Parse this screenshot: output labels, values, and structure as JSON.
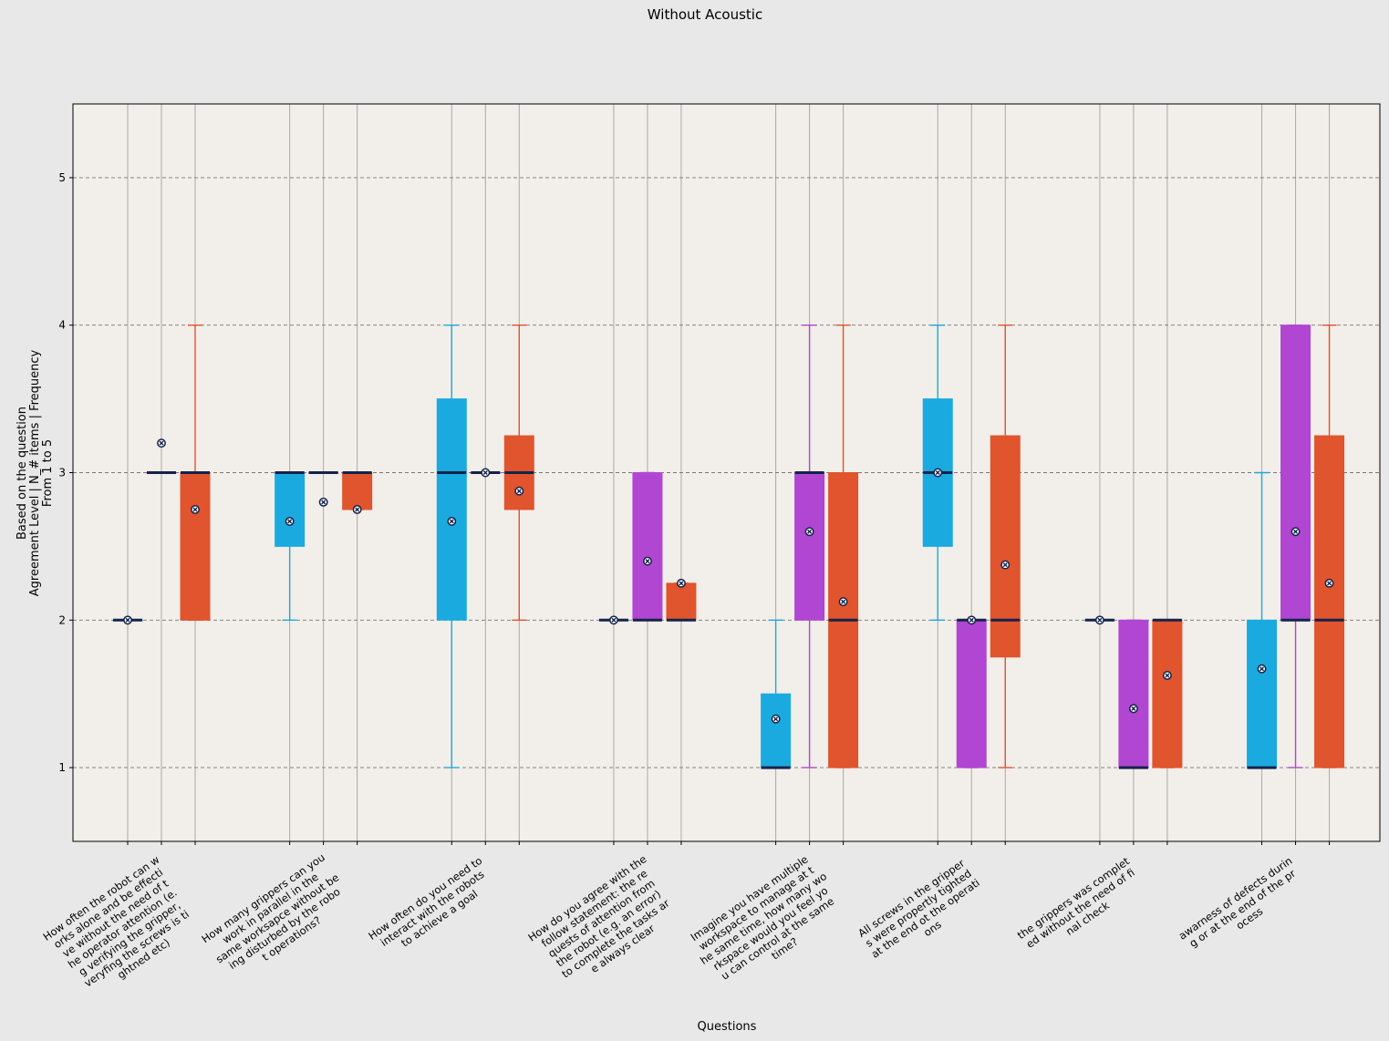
{
  "chart_data": {
    "type": "boxplot",
    "title": "Without Acoustic",
    "xlabel": "Questions",
    "ylabel": [
      "Based on the question",
      "Agreement Level | N_# items | Frequency",
      "From 1 to 5"
    ],
    "ylim": [
      0.5,
      5.5
    ],
    "yticks": [
      1,
      2,
      3,
      4,
      5
    ],
    "grid": "y-dashed",
    "colors": {
      "series_1": "#1aaadf",
      "series_2": "#b046d2",
      "series_3": "#e0542e",
      "median": "#14234b",
      "background": "#f2eee9",
      "figure": "#e8e8e8"
    },
    "categories": [
      [
        "How often the robot can w",
        "orks alone and be effecti",
        "ve without  the need of t",
        "he operator attention (e.",
        "g verifying the gripper,",
        "veryfing the screws is ti",
        "ghtned etc)"
      ],
      [
        "How many grippers can you",
        "work in parallel in the",
        "same worksapce without be",
        "ing disturbed by the robo",
        "t operations?"
      ],
      [
        "How often do you need to",
        "interact with the robots",
        "to achieve a goal"
      ],
      [
        "How do you agree with the",
        "follow statement: the re",
        "quests of attention from",
        "the robot (e.g. an error)",
        "to complete the tasks ar",
        "e always clear"
      ],
      [
        "Imagine you have multiple",
        "workspace to manage at t",
        "he same time, how many wo",
        "rkspace would you feel yo",
        "u can control at the same",
        "time?"
      ],
      [
        "All screws in the gripper",
        "s were propertly tighted",
        "at the end ot the operati",
        "ons"
      ],
      [
        "the grippers was  complet",
        "ed without the need of fi",
        "nal check"
      ],
      [
        "awarness of defects durin",
        "g or at the end of the pr",
        "ocess"
      ]
    ],
    "groups": [
      [
        {
          "series": "series_1",
          "whislo": 2,
          "q1": 2,
          "med": 2,
          "q3": 2,
          "whishi": 2,
          "mean": 2
        },
        {
          "series": "series_2",
          "whislo": 3,
          "q1": 3,
          "med": 3,
          "q3": 3,
          "whishi": 3,
          "mean": 3.2
        },
        {
          "series": "series_3",
          "whislo": 2,
          "q1": 2,
          "med": 3,
          "q3": 3,
          "whishi": 4,
          "mean": 2.75
        }
      ],
      [
        {
          "series": "series_1",
          "whislo": 2,
          "q1": 2.5,
          "med": 3,
          "q3": 3,
          "whishi": 3,
          "mean": 2.67
        },
        {
          "series": "series_2",
          "whislo": 3,
          "q1": 3,
          "med": 3,
          "q3": 3,
          "whishi": 3,
          "mean": 2.8
        },
        {
          "series": "series_3",
          "whislo": 2.75,
          "q1": 2.75,
          "med": 3,
          "q3": 3,
          "whishi": 3,
          "mean": 2.75
        }
      ],
      [
        {
          "series": "series_1",
          "whislo": 1,
          "q1": 2,
          "med": 3,
          "q3": 3.5,
          "whishi": 4,
          "mean": 2.67
        },
        {
          "series": "series_2",
          "whislo": 3,
          "q1": 3,
          "med": 3,
          "q3": 3,
          "whishi": 3,
          "mean": 3
        },
        {
          "series": "series_3",
          "whislo": 2,
          "q1": 2.75,
          "med": 3,
          "q3": 3.25,
          "whishi": 4,
          "mean": 2.875
        }
      ],
      [
        {
          "series": "series_1",
          "whislo": 2,
          "q1": 2,
          "med": 2,
          "q3": 2,
          "whishi": 2,
          "mean": 2
        },
        {
          "series": "series_2",
          "whislo": 2,
          "q1": 2,
          "med": 2,
          "q3": 3,
          "whishi": 3,
          "mean": 2.4
        },
        {
          "series": "series_3",
          "whislo": 2,
          "q1": 2,
          "med": 2,
          "q3": 2.25,
          "whishi": 2.25,
          "mean": 2.25
        }
      ],
      [
        {
          "series": "series_1",
          "whislo": 1,
          "q1": 1,
          "med": 1,
          "q3": 1.5,
          "whishi": 2,
          "mean": 1.33
        },
        {
          "series": "series_2",
          "whislo": 1,
          "q1": 2,
          "med": 3,
          "q3": 3,
          "whishi": 4,
          "mean": 2.6
        },
        {
          "series": "series_3",
          "whislo": 1,
          "q1": 1,
          "med": 2,
          "q3": 3,
          "whishi": 4,
          "mean": 2.125
        }
      ],
      [
        {
          "series": "series_1",
          "whislo": 2,
          "q1": 2.5,
          "med": 3,
          "q3": 3.5,
          "whishi": 4,
          "mean": 3
        },
        {
          "series": "series_2",
          "whislo": 1,
          "q1": 1,
          "med": 2,
          "q3": 2,
          "whishi": 2,
          "mean": 2
        },
        {
          "series": "series_3",
          "whislo": 1,
          "q1": 1.75,
          "med": 2,
          "q3": 3.25,
          "whishi": 4,
          "mean": 2.375
        }
      ],
      [
        {
          "series": "series_1",
          "whislo": 2,
          "q1": 2,
          "med": 2,
          "q3": 2,
          "whishi": 2,
          "mean": 2
        },
        {
          "series": "series_2",
          "whislo": 1,
          "q1": 1,
          "med": 1,
          "q3": 2,
          "whishi": 2,
          "mean": 1.4
        },
        {
          "series": "series_3",
          "whislo": 1,
          "q1": 1,
          "med": 2,
          "q3": 2,
          "whishi": 2,
          "mean": 1.625
        }
      ],
      [
        {
          "series": "series_1",
          "whislo": 1,
          "q1": 1,
          "med": 1,
          "q3": 2,
          "whishi": 3,
          "mean": 1.67
        },
        {
          "series": "series_2",
          "whislo": 1,
          "q1": 2,
          "med": 2,
          "q3": 4,
          "whishi": 4,
          "mean": 2.6
        },
        {
          "series": "series_3",
          "whislo": 1,
          "q1": 1,
          "med": 2,
          "q3": 3.25,
          "whishi": 4,
          "mean": 2.25
        }
      ]
    ]
  }
}
